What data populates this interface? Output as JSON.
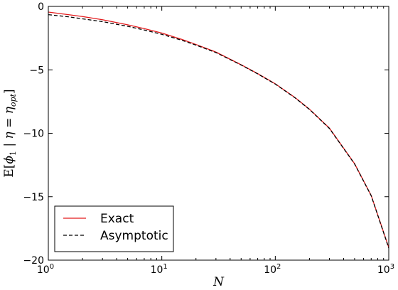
{
  "chart_data": {
    "type": "line",
    "xscale": "log",
    "xlim": [
      1,
      1000
    ],
    "ylim": [
      -20,
      0
    ],
    "xlabel": "N",
    "ylabel": "E[ϕ₁ | η = ηopt]",
    "ylabel_parts": {
      "lead": "E[",
      "phi": "ϕ",
      "phi_sub": "1",
      "mid": " | η = η",
      "eta_sub": "opt",
      "tail": "]"
    },
    "x_ticks": [
      {
        "base": "10",
        "exp": "0",
        "value": 1
      },
      {
        "base": "10",
        "exp": "1",
        "value": 10
      },
      {
        "base": "10",
        "exp": "2",
        "value": 100
      },
      {
        "base": "10",
        "exp": "3",
        "value": 1000
      }
    ],
    "y_ticks": [
      {
        "label": "0",
        "value": 0
      },
      {
        "label": "−5",
        "value": -5
      },
      {
        "label": "−10",
        "value": -10
      },
      {
        "label": "−15",
        "value": -15
      },
      {
        "label": "−20",
        "value": -20
      }
    ],
    "legend_position": "bottom-left",
    "series": [
      {
        "name": "Exact",
        "color": "#e41a1c",
        "style": "solid",
        "x": [
          1,
          1.5,
          2,
          3,
          5,
          7,
          10,
          15,
          20,
          30,
          50,
          70,
          100,
          150,
          200,
          300,
          500,
          700,
          1000
        ],
        "y": [
          -0.45,
          -0.65,
          -0.8,
          -1.05,
          -1.45,
          -1.75,
          -2.1,
          -2.6,
          -3.0,
          -3.6,
          -4.6,
          -5.3,
          -6.1,
          -7.2,
          -8.1,
          -9.6,
          -12.4,
          -14.9,
          -19.0
        ]
      },
      {
        "name": "Asymptotic",
        "color": "#000000",
        "style": "dashed",
        "x": [
          1,
          1.5,
          2,
          3,
          5,
          7,
          10,
          15,
          20,
          30,
          50,
          70,
          100,
          150,
          200,
          300,
          500,
          700,
          1000
        ],
        "y": [
          -0.65,
          -0.82,
          -0.98,
          -1.2,
          -1.57,
          -1.86,
          -2.2,
          -2.67,
          -3.05,
          -3.64,
          -4.62,
          -5.32,
          -6.12,
          -7.22,
          -8.12,
          -9.62,
          -12.42,
          -14.92,
          -19.05
        ]
      }
    ]
  }
}
